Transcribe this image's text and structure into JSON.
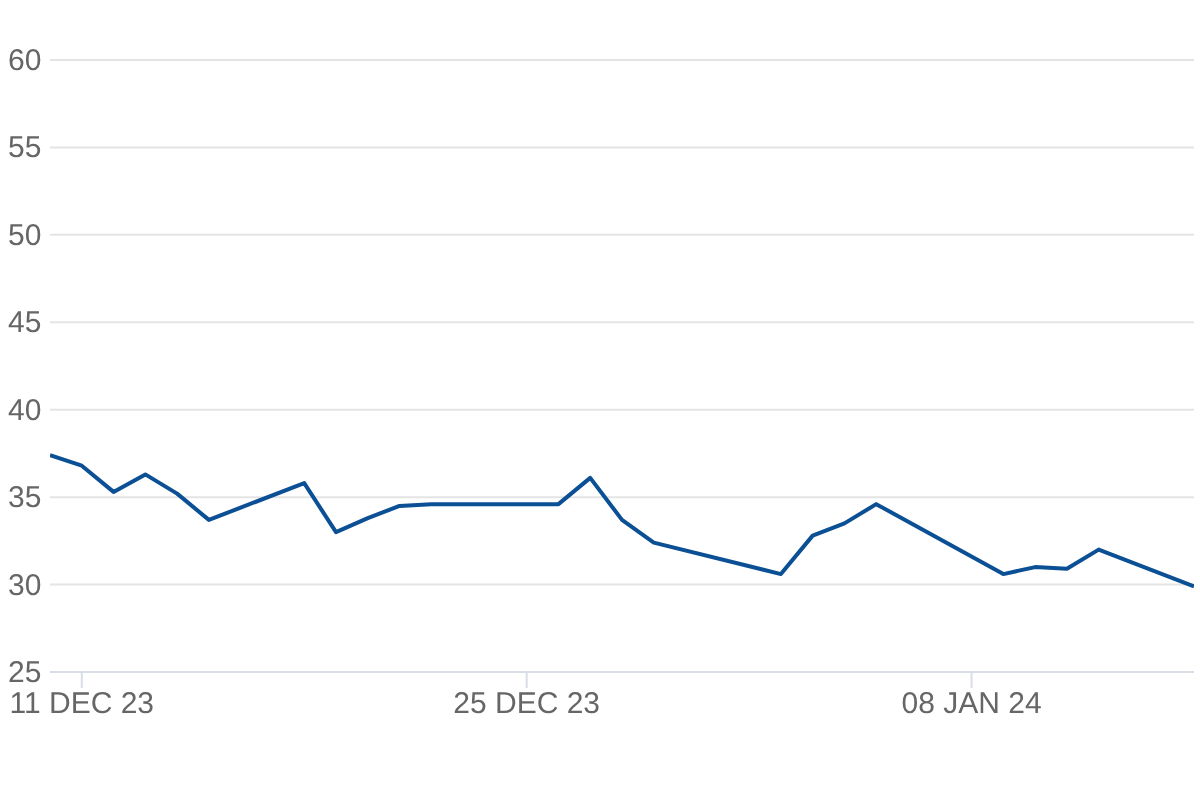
{
  "chart_data": {
    "type": "line",
    "x": [
      "2023-12-10",
      "2023-12-11",
      "2023-12-12",
      "2023-12-13",
      "2023-12-14",
      "2023-12-15",
      "2023-12-18",
      "2023-12-19",
      "2023-12-20",
      "2023-12-21",
      "2023-12-22",
      "2023-12-26",
      "2023-12-27",
      "2023-12-28",
      "2023-12-29",
      "2024-01-02",
      "2024-01-03",
      "2024-01-04",
      "2024-01-05",
      "2024-01-09",
      "2024-01-10",
      "2024-01-11",
      "2024-01-12",
      "2024-01-15"
    ],
    "series": [
      {
        "color": "#0b4f94",
        "values": [
          37.4,
          36.8,
          35.3,
          36.3,
          35.2,
          33.7,
          35.8,
          33.0,
          33.8,
          34.5,
          34.6,
          34.6,
          36.1,
          33.7,
          32.4,
          30.6,
          32.8,
          33.5,
          34.6,
          30.6,
          31.0,
          30.9,
          32.0,
          29.9
        ]
      }
    ],
    "xlim": [
      "2023-12-10",
      "2024-01-15"
    ],
    "xticks": [
      {
        "value": "2023-12-11",
        "label": "11 DEC 23"
      },
      {
        "value": "2023-12-25",
        "label": "25 DEC 23"
      },
      {
        "value": "2024-01-08",
        "label": "08 JAN 24"
      }
    ],
    "ylim": [
      25,
      60
    ],
    "yticks": [
      25,
      30,
      35,
      40,
      45,
      50,
      55,
      60
    ],
    "grid": "y",
    "legend": false,
    "marker": "none",
    "line_style": "solid"
  }
}
